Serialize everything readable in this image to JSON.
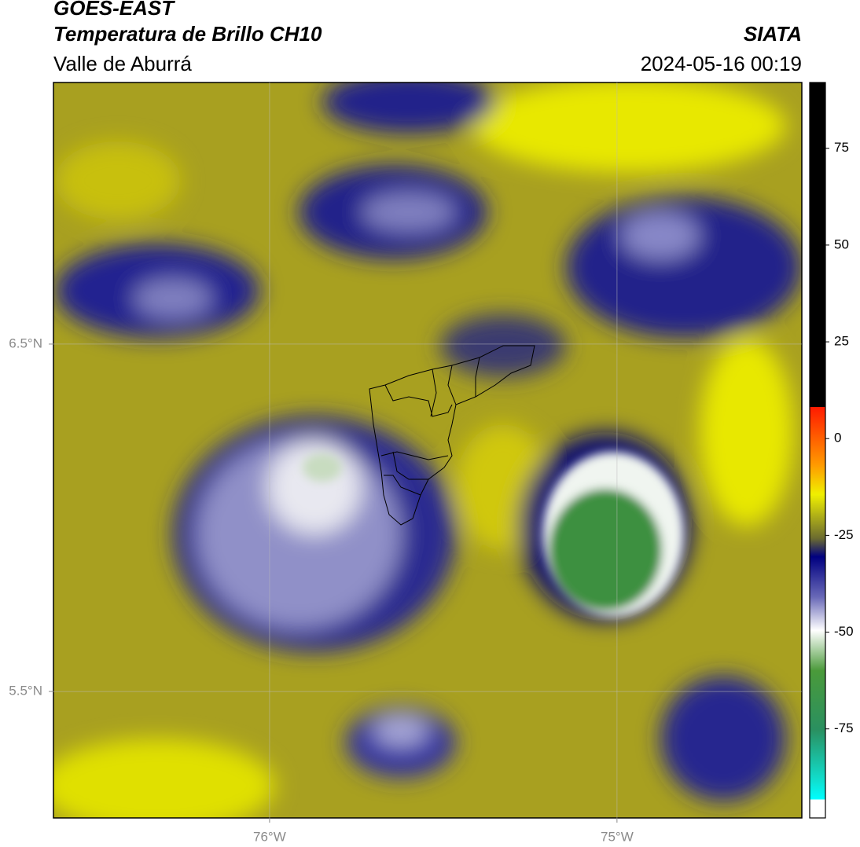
{
  "header": {
    "title": "GOES-EAST",
    "subtitle": "Temperatura de Brillo CH10",
    "region": "Valle de Aburrá",
    "source": "SIATA",
    "timestamp": "2024-05-16 00:19"
  },
  "map": {
    "lon_range": [
      -76.622,
      -74.468
    ],
    "lat_range": [
      5.136,
      7.253
    ],
    "lon_ticks": [
      {
        "value": -76,
        "label": "76°W"
      },
      {
        "value": -75,
        "label": "75°W"
      }
    ],
    "lat_ticks": [
      {
        "value": 6.5,
        "label": "6.5°N"
      },
      {
        "value": 5.5,
        "label": "5.5°N"
      }
    ]
  },
  "colorbar": {
    "range": [
      -98,
      92
    ],
    "ticks": [
      75,
      50,
      25,
      0,
      -25,
      -50,
      -75
    ]
  }
}
